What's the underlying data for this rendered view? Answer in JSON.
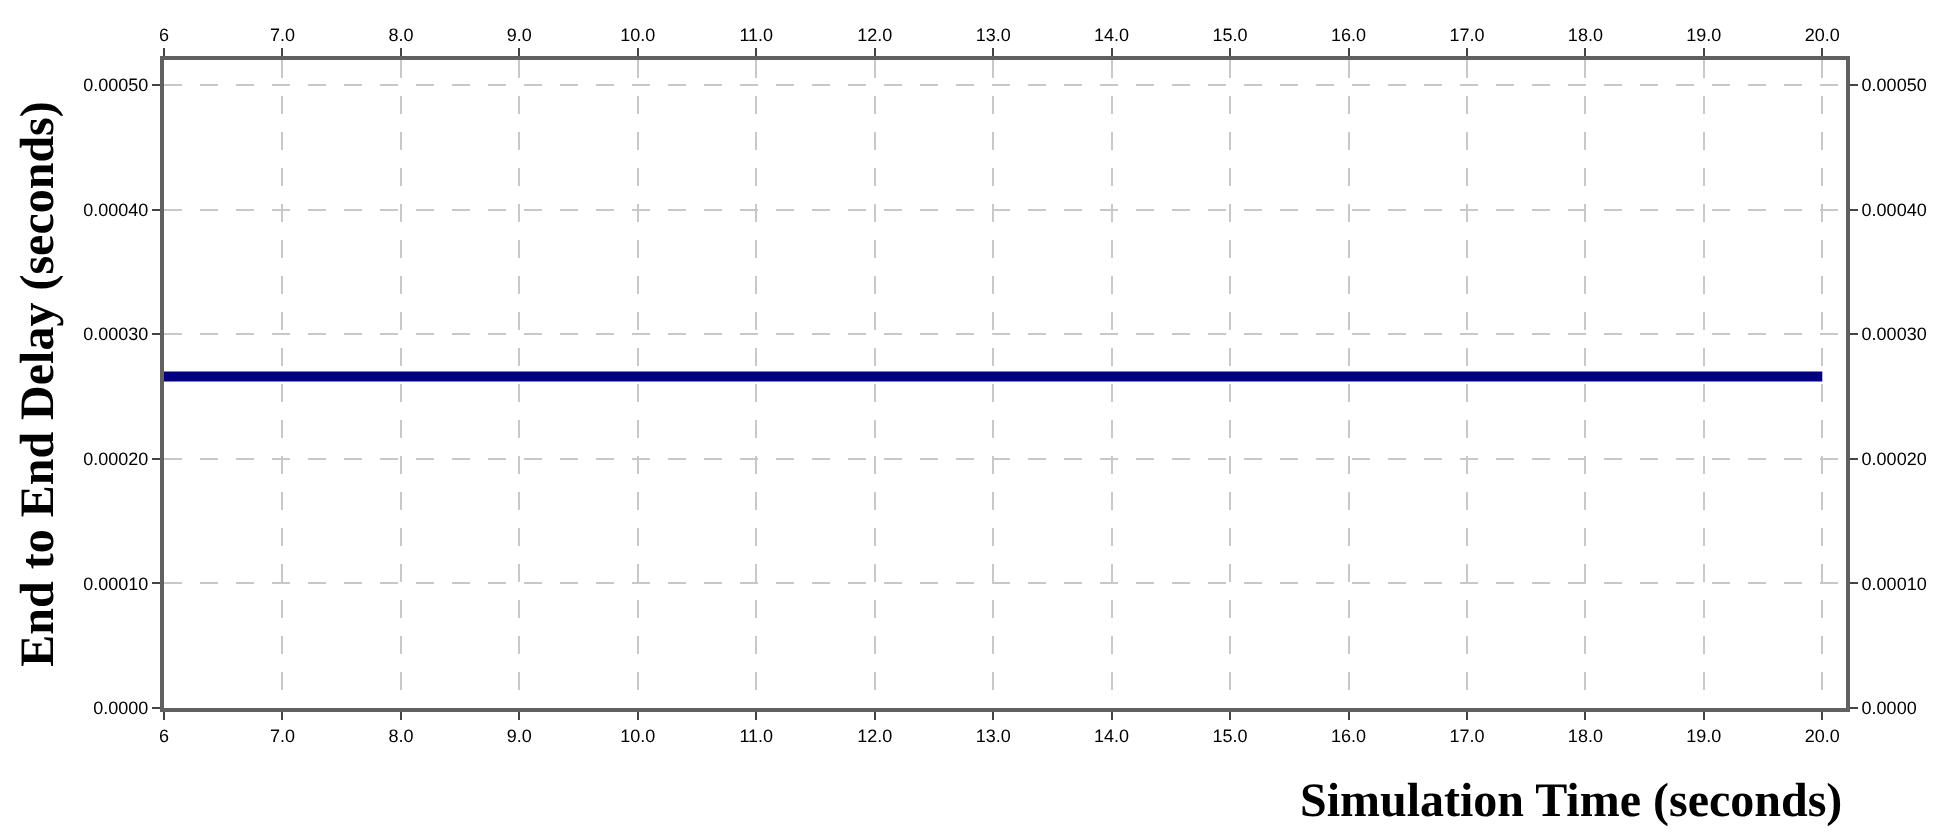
{
  "chart_data": {
    "type": "line",
    "xlabel": "Simulation Time (seconds)",
    "ylabel": "End to End Delay (seconds)",
    "x": [
      6,
      20
    ],
    "series": [
      {
        "color": "#000080",
        "values": [
          0.000266,
          0.000266
        ]
      }
    ],
    "xlim": [
      6,
      20.2
    ],
    "xticks": [
      {
        "value": 6,
        "label": "6"
      },
      {
        "value": 7,
        "label": "7.0"
      },
      {
        "value": 8,
        "label": "8.0"
      },
      {
        "value": 9,
        "label": "9.0"
      },
      {
        "value": 10,
        "label": "10.0"
      },
      {
        "value": 11,
        "label": "11.0"
      },
      {
        "value": 12,
        "label": "12.0"
      },
      {
        "value": 13,
        "label": "13.0"
      },
      {
        "value": 14,
        "label": "14.0"
      },
      {
        "value": 15,
        "label": "15.0"
      },
      {
        "value": 16,
        "label": "16.0"
      },
      {
        "value": 17,
        "label": "17.0"
      },
      {
        "value": 18,
        "label": "18.0"
      },
      {
        "value": 19,
        "label": "19.0"
      },
      {
        "value": 20,
        "label": "20.0"
      }
    ],
    "x2lim": [
      6,
      20.2
    ],
    "x2ticks": [
      {
        "value": 6,
        "label": "6"
      },
      {
        "value": 7,
        "label": "7.0"
      },
      {
        "value": 8,
        "label": "8.0"
      },
      {
        "value": 9,
        "label": "9.0"
      },
      {
        "value": 10,
        "label": "10.0"
      },
      {
        "value": 11,
        "label": "11.0"
      },
      {
        "value": 12,
        "label": "12.0"
      },
      {
        "value": 13,
        "label": "13.0"
      },
      {
        "value": 14,
        "label": "14.0"
      },
      {
        "value": 15,
        "label": "15.0"
      },
      {
        "value": 16,
        "label": "16.0"
      },
      {
        "value": 17,
        "label": "17.0"
      },
      {
        "value": 18,
        "label": "18.0"
      },
      {
        "value": 19,
        "label": "19.0"
      },
      {
        "value": 20,
        "label": "20.0"
      }
    ],
    "ylim": [
      0,
      0.00052
    ],
    "yticks": [
      {
        "value": 0,
        "label": "0.0000"
      },
      {
        "value": 0.0001,
        "label": "0.00010"
      },
      {
        "value": 0.0002,
        "label": "0.00020"
      },
      {
        "value": 0.0003,
        "label": "0.00030"
      },
      {
        "value": 0.0004,
        "label": "0.00040"
      },
      {
        "value": 0.0005,
        "label": "0.00050"
      }
    ],
    "y2lim": [
      0,
      0.00052
    ],
    "y2ticks": [
      {
        "value": 0,
        "label": "0.0000"
      },
      {
        "value": 0.0001,
        "label": "0.00010"
      },
      {
        "value": 0.0002,
        "label": "0.00020"
      },
      {
        "value": 0.0003,
        "label": "0.00030"
      },
      {
        "value": 0.0004,
        "label": "0.00040"
      },
      {
        "value": 0.0005,
        "label": "0.00050"
      }
    ],
    "grid": true,
    "line_style": "solid",
    "marker": "none"
  }
}
